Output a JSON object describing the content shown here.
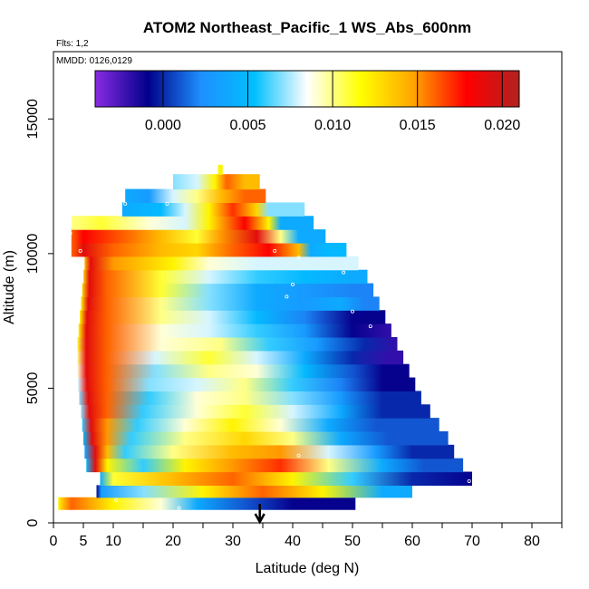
{
  "chart_data": {
    "type": "heatmap",
    "title": "ATOM2 Northeast_Pacific_1 WS_Abs_600nm",
    "subtitle_flights": "Flts: 1,2",
    "subtitle_dates": "MMDD: 0126,0129",
    "xlabel": "Latitude (deg N)",
    "ylabel": "Altitude (m)",
    "xlim": [
      0,
      85
    ],
    "ylim": [
      0,
      17500
    ],
    "x_ticks": [
      0,
      5,
      10,
      20,
      30,
      40,
      50,
      60,
      70,
      80
    ],
    "x_tick_labels": [
      "0",
      "5",
      "10",
      "20",
      "30",
      "40",
      "50",
      "60",
      "70",
      "80"
    ],
    "x_minor_ticks": [
      15,
      25,
      35,
      45,
      55,
      65,
      75,
      85
    ],
    "y_ticks": [
      0,
      5000,
      10000,
      15000
    ],
    "y_tick_labels": [
      "0",
      "5000",
      "10000",
      "15000"
    ],
    "colorbar": {
      "min": -0.004,
      "max": 0.021,
      "ticks": [
        0.0,
        0.005,
        0.01,
        0.015,
        0.02
      ],
      "tick_labels": [
        "0.000",
        "0.005",
        "0.010",
        "0.015",
        "0.020"
      ],
      "colors": [
        "#8a2be2",
        "#00008b",
        "#1e90ff",
        "#00bfff",
        "#ffffff",
        "#ffff00",
        "#ffa500",
        "#ff0000",
        "#b22222"
      ]
    },
    "rows": [
      {
        "y0": 500,
        "y1": 950,
        "segments": [
          [
            0.8,
            0.012
          ],
          [
            3,
            0.016
          ],
          [
            10,
            0.012
          ],
          [
            18,
            0.009
          ],
          [
            24,
            0.004
          ],
          [
            32,
            0.001
          ],
          [
            40,
            -0.001
          ],
          [
            50.5,
            -0.001
          ]
        ]
      },
      {
        "y0": 950,
        "y1": 1400,
        "segments": [
          [
            7.2,
            -0.001
          ],
          [
            8,
            0.003
          ],
          [
            15,
            0.007
          ],
          [
            25,
            0.012
          ],
          [
            35,
            0.016
          ],
          [
            45,
            0.012
          ],
          [
            55,
            0.004
          ],
          [
            60,
            0.004
          ]
        ]
      },
      {
        "y0": 1400,
        "y1": 1900,
        "segments": [
          [
            7.8,
            0.004
          ],
          [
            10,
            0.011
          ],
          [
            20,
            0.014
          ],
          [
            30,
            0.016
          ],
          [
            40,
            0.012
          ],
          [
            50,
            0.006
          ],
          [
            60,
            0.0
          ],
          [
            70,
            -0.001
          ]
        ]
      },
      {
        "y0": 1900,
        "y1": 2400,
        "segments": [
          [
            5.5,
            0.005
          ],
          [
            7,
            0.019
          ],
          [
            9,
            0.012
          ],
          [
            15,
            0.006
          ],
          [
            22,
            0.012
          ],
          [
            30,
            0.015
          ],
          [
            38,
            0.017
          ],
          [
            46,
            0.01
          ],
          [
            55,
            0.004
          ],
          [
            62,
            0.001
          ],
          [
            68.5,
            0.001
          ]
        ]
      },
      {
        "y0": 2400,
        "y1": 2900,
        "segments": [
          [
            5.2,
            0.004
          ],
          [
            7,
            0.019
          ],
          [
            9,
            0.014
          ],
          [
            12,
            0.006
          ],
          [
            20,
            0.01
          ],
          [
            30,
            0.014
          ],
          [
            38,
            0.015
          ],
          [
            46,
            0.008
          ],
          [
            54,
            0.003
          ],
          [
            60,
            0.0
          ],
          [
            67,
            0.0
          ]
        ]
      },
      {
        "y0": 2900,
        "y1": 3400,
        "segments": [
          [
            5,
            0.005
          ],
          [
            6.5,
            0.019
          ],
          [
            9,
            0.015
          ],
          [
            13,
            0.006
          ],
          [
            22,
            0.01
          ],
          [
            32,
            0.013
          ],
          [
            40,
            0.01
          ],
          [
            48,
            0.004
          ],
          [
            56,
            0.001
          ],
          [
            66,
            0.001
          ]
        ]
      },
      {
        "y0": 3400,
        "y1": 3900,
        "segments": [
          [
            4.8,
            0.006
          ],
          [
            6.3,
            0.019
          ],
          [
            9,
            0.015
          ],
          [
            14,
            0.006
          ],
          [
            22,
            0.009
          ],
          [
            30,
            0.012
          ],
          [
            38,
            0.009
          ],
          [
            46,
            0.004
          ],
          [
            54,
            0.001
          ],
          [
            64.5,
            0.001
          ]
        ]
      },
      {
        "y0": 3900,
        "y1": 4400,
        "segments": [
          [
            4.6,
            0.007
          ],
          [
            6,
            0.019
          ],
          [
            9,
            0.016
          ],
          [
            15,
            0.006
          ],
          [
            24,
            0.009
          ],
          [
            32,
            0.011
          ],
          [
            40,
            0.008
          ],
          [
            48,
            0.004
          ],
          [
            55,
            0.0
          ],
          [
            63,
            0.0
          ]
        ]
      },
      {
        "y0": 4400,
        "y1": 4900,
        "segments": [
          [
            4.3,
            0.007
          ],
          [
            5.8,
            0.019
          ],
          [
            9,
            0.016
          ],
          [
            16,
            0.006
          ],
          [
            24,
            0.009
          ],
          [
            32,
            0.01
          ],
          [
            40,
            0.007
          ],
          [
            48,
            0.003
          ],
          [
            55,
            0.0
          ],
          [
            61.5,
            0.0
          ]
        ]
      },
      {
        "y0": 4900,
        "y1": 5400,
        "segments": [
          [
            4.1,
            0.008
          ],
          [
            5.6,
            0.019
          ],
          [
            9,
            0.016
          ],
          [
            16,
            0.007
          ],
          [
            24,
            0.008
          ],
          [
            32,
            0.01
          ],
          [
            40,
            0.006
          ],
          [
            48,
            0.002
          ],
          [
            55,
            -0.001
          ],
          [
            60.5,
            -0.001
          ]
        ]
      },
      {
        "y0": 5400,
        "y1": 5900,
        "segments": [
          [
            4,
            0.009
          ],
          [
            5.5,
            0.019
          ],
          [
            9,
            0.016
          ],
          [
            17,
            0.007
          ],
          [
            26,
            0.01
          ],
          [
            34,
            0.009
          ],
          [
            42,
            0.005
          ],
          [
            50,
            0.001
          ],
          [
            55,
            -0.001
          ],
          [
            59.5,
            -0.001
          ]
        ]
      },
      {
        "y0": 5900,
        "y1": 6400,
        "segments": [
          [
            4,
            0.01
          ],
          [
            5.5,
            0.019
          ],
          [
            9,
            0.016
          ],
          [
            17,
            0.008
          ],
          [
            26,
            0.011
          ],
          [
            34,
            0.008
          ],
          [
            42,
            0.004
          ],
          [
            50,
            0.0
          ],
          [
            56,
            -0.002
          ],
          [
            58.5,
            -0.002
          ]
        ]
      },
      {
        "y0": 6400,
        "y1": 6900,
        "segments": [
          [
            4,
            0.011
          ],
          [
            5.5,
            0.019
          ],
          [
            9,
            0.016
          ],
          [
            18,
            0.009
          ],
          [
            28,
            0.01
          ],
          [
            36,
            0.006
          ],
          [
            44,
            0.003
          ],
          [
            52,
            0.0
          ],
          [
            57.5,
            -0.002
          ]
        ]
      },
      {
        "y0": 6900,
        "y1": 7400,
        "segments": [
          [
            4.2,
            0.012
          ],
          [
            5.5,
            0.019
          ],
          [
            9,
            0.016
          ],
          [
            18,
            0.009
          ],
          [
            26,
            0.008
          ],
          [
            34,
            0.006
          ],
          [
            42,
            0.003
          ],
          [
            50,
            -0.001
          ],
          [
            56.5,
            -0.002
          ]
        ]
      },
      {
        "y0": 7400,
        "y1": 7900,
        "segments": [
          [
            4.4,
            0.012
          ],
          [
            5.6,
            0.019
          ],
          [
            9,
            0.016
          ],
          [
            18,
            0.01
          ],
          [
            26,
            0.008
          ],
          [
            34,
            0.005
          ],
          [
            42,
            0.002
          ],
          [
            50,
            -0.001
          ],
          [
            55.5,
            -0.001
          ]
        ]
      },
      {
        "y0": 7900,
        "y1": 8400,
        "segments": [
          [
            4.6,
            0.012
          ],
          [
            5.8,
            0.019
          ],
          [
            9,
            0.016
          ],
          [
            18,
            0.01
          ],
          [
            26,
            0.007
          ],
          [
            34,
            0.004
          ],
          [
            42,
            0.003
          ],
          [
            48,
            0.004
          ],
          [
            52,
            0.002
          ],
          [
            54.5,
            0.002
          ]
        ]
      },
      {
        "y0": 8400,
        "y1": 8900,
        "segments": [
          [
            4.8,
            0.013
          ],
          [
            6,
            0.019
          ],
          [
            9,
            0.016
          ],
          [
            18,
            0.011
          ],
          [
            26,
            0.007
          ],
          [
            34,
            0.004
          ],
          [
            42,
            0.003
          ],
          [
            50,
            0.002
          ],
          [
            53.5,
            0.002
          ]
        ]
      },
      {
        "y0": 8900,
        "y1": 9400,
        "segments": [
          [
            5,
            0.013
          ],
          [
            6,
            0.019
          ],
          [
            9,
            0.016
          ],
          [
            18,
            0.011
          ],
          [
            26,
            0.008
          ],
          [
            34,
            0.006
          ],
          [
            42,
            0.005
          ],
          [
            50,
            0.004
          ],
          [
            52.5,
            0.004
          ]
        ]
      },
      {
        "y0": 9400,
        "y1": 9900,
        "segments": [
          [
            5.2,
            0.014
          ],
          [
            6.2,
            0.019
          ],
          [
            10,
            0.015
          ],
          [
            20,
            0.012
          ],
          [
            26,
            0.009
          ],
          [
            34,
            0.008
          ],
          [
            42,
            0.008
          ],
          [
            48,
            0.008
          ],
          [
            51,
            0.008
          ]
        ]
      },
      {
        "y0": 9900,
        "y1": 10400,
        "segments": [
          [
            3,
            0.016
          ],
          [
            5,
            0.019
          ],
          [
            10,
            0.016
          ],
          [
            18,
            0.014
          ],
          [
            24,
            0.013
          ],
          [
            30,
            0.016
          ],
          [
            36,
            0.018
          ],
          [
            41,
            0.014
          ],
          [
            43,
            0.004
          ],
          [
            46,
            0.005
          ],
          [
            49,
            0.005
          ]
        ]
      },
      {
        "y0": 10400,
        "y1": 10900,
        "segments": [
          [
            3,
            0.016
          ],
          [
            5,
            0.018
          ],
          [
            12,
            0.016
          ],
          [
            18,
            0.014
          ],
          [
            24,
            0.011
          ],
          [
            28,
            0.015
          ],
          [
            34,
            0.019
          ],
          [
            38,
            0.01
          ],
          [
            41,
            0.004
          ],
          [
            45.5,
            0.004
          ]
        ]
      },
      {
        "y0": 10900,
        "y1": 11400,
        "segments": [
          [
            3,
            0.01
          ],
          [
            8,
            0.011
          ],
          [
            16,
            0.009
          ],
          [
            22,
            0.008
          ],
          [
            26,
            0.012
          ],
          [
            32,
            0.018
          ],
          [
            36,
            0.012
          ],
          [
            38,
            0.004
          ],
          [
            43.5,
            0.004
          ]
        ]
      },
      {
        "y0": 11400,
        "y1": 11900,
        "segments": [
          [
            11.5,
            0.004
          ],
          [
            18,
            0.005
          ],
          [
            22,
            0.008
          ],
          [
            26,
            0.012
          ],
          [
            30,
            0.017
          ],
          [
            34,
            0.013
          ],
          [
            36,
            0.007
          ],
          [
            38,
            0.007
          ],
          [
            42,
            0.007
          ]
        ]
      },
      {
        "y0": 11900,
        "y1": 12400,
        "segments": [
          [
            12,
            0.004
          ],
          [
            16,
            0.003
          ],
          [
            20,
            0.008
          ],
          [
            24,
            0.01
          ],
          [
            28,
            0.014
          ],
          [
            32,
            0.016
          ],
          [
            35.5,
            0.016
          ]
        ]
      },
      {
        "y0": 12400,
        "y1": 12950,
        "segments": [
          [
            20,
            0.007
          ],
          [
            24,
            0.008
          ],
          [
            27,
            0.012
          ],
          [
            29,
            0.016
          ],
          [
            32,
            0.014
          ],
          [
            34.5,
            0.014
          ]
        ]
      },
      {
        "y0": 12950,
        "y1": 13300,
        "segments": [
          [
            27.5,
            0.012
          ],
          [
            28.3,
            0.012
          ]
        ]
      }
    ],
    "sample_markers": [
      [
        12,
        11850
      ],
      [
        19,
        11850
      ],
      [
        2.8,
        10750
      ],
      [
        4.5,
        10100
      ],
      [
        37,
        10100
      ],
      [
        41,
        9850
      ],
      [
        48.5,
        9300
      ],
      [
        40,
        8850
      ],
      [
        39,
        8400
      ],
      [
        50,
        7850
      ],
      [
        53,
        7300
      ],
      [
        10.5,
        850
      ],
      [
        21,
        550
      ],
      [
        40,
        350
      ],
      [
        41,
        2500
      ],
      [
        69.5,
        1550
      ]
    ],
    "arrow_latitude": 34.5
  }
}
